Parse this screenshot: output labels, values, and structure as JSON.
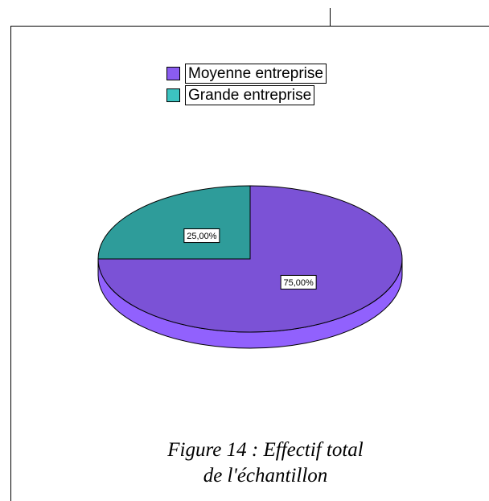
{
  "chart_data": {
    "type": "pie",
    "style": "3d",
    "categories": [
      "Moyenne entreprise",
      "Grande entreprise"
    ],
    "values": [
      75,
      25
    ],
    "data_labels": [
      "75,00%",
      "25,00%"
    ],
    "colors": {
      "Moyenne entreprise": "#7b52d6",
      "Grande entreprise": "#2e9c9a"
    },
    "legend": {
      "placement": "top",
      "entries": [
        {
          "label": "Moyenne entreprise",
          "color": "#8a5cf0"
        },
        {
          "label": "Grande entreprise",
          "color": "#3cc3c0"
        }
      ]
    }
  },
  "caption": {
    "line1": "Figure 14 : Effectif total",
    "line2": "de l'échantillon"
  }
}
